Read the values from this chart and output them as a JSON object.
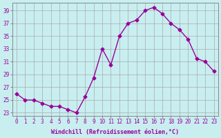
{
  "x": [
    0,
    1,
    2,
    3,
    4,
    5,
    6,
    7,
    8,
    9,
    10,
    11,
    12,
    13,
    14,
    15,
    16,
    17,
    18,
    19,
    20,
    21,
    22,
    23
  ],
  "y": [
    26,
    25,
    25,
    24.5,
    24,
    24,
    23.5,
    23,
    25.5,
    28.5,
    33,
    30.5,
    35,
    37,
    37.5,
    39,
    39.5,
    38.5,
    37,
    36,
    34.5,
    31.5,
    31,
    29.5
  ],
  "line_color": "#990099",
  "marker": "D",
  "marker_size": 2.5,
  "bg_color": "#c8eef0",
  "grid_color": "#aaaaaa",
  "xlabel": "Windchill (Refroidissement éolien,°C)",
  "xlabel_color": "#990099",
  "ylabel_ticks": [
    23,
    25,
    27,
    29,
    31,
    33,
    35,
    37,
    39
  ],
  "xtick_labels": [
    "0",
    "1",
    "2",
    "3",
    "4",
    "5",
    "6",
    "7",
    "8",
    "9",
    "10",
    "11",
    "12",
    "13",
    "14",
    "15",
    "16",
    "17",
    "18",
    "19",
    "20",
    "21",
    "22",
    "23"
  ],
  "xlim": [
    -0.5,
    23.5
  ],
  "ylim": [
    22.5,
    40.2
  ]
}
